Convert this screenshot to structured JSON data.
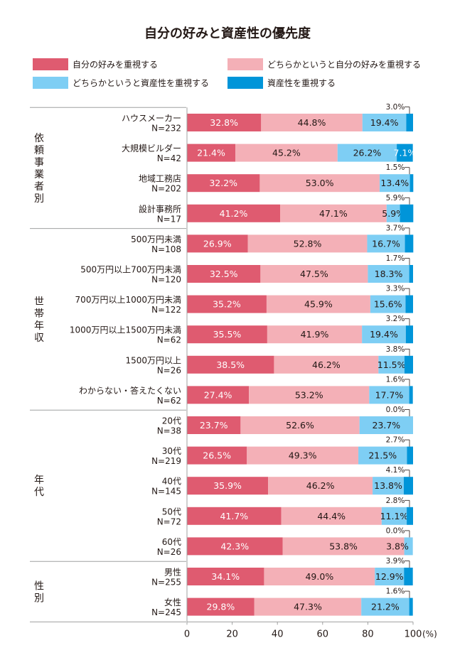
{
  "chart_data": {
    "type": "bar",
    "orientation": "horizontal",
    "stacked": true,
    "title": "自分の好みと資産性の優先度",
    "xlabel": "",
    "ylabel": "",
    "xlim": [
      0,
      100
    ],
    "x_ticks": [
      "0",
      "20",
      "40",
      "60",
      "80",
      "100"
    ],
    "x_unit": "(%)",
    "legend_position": "top",
    "series": [
      {
        "name": "自分の好みを重視する",
        "color": "#df5b70"
      },
      {
        "name": "どちらかというと自分の好みを重視する",
        "color": "#f4b0b7"
      },
      {
        "name": "どちらかというと資産性を重視する",
        "color": "#7ecef4"
      },
      {
        "name": "資産性を重視する",
        "color": "#0095d9"
      }
    ],
    "groups": [
      {
        "label": "依頼事業者別",
        "rows": [
          {
            "label": "ハウスメーカー",
            "n": "N=232",
            "values": [
              32.8,
              44.8,
              19.4,
              3.0
            ],
            "labels": [
              "32.8%",
              "44.8%",
              "19.4%",
              "3.0%"
            ]
          },
          {
            "label": "大規模ビルダー",
            "n": "N=42",
            "values": [
              21.4,
              45.2,
              26.2,
              7.1
            ],
            "labels": [
              "21.4%",
              "45.2%",
              "26.2%",
              "7.1%"
            ]
          },
          {
            "label": "地域工務店",
            "n": "N=202",
            "values": [
              32.2,
              53.0,
              13.4,
              1.5
            ],
            "labels": [
              "32.2%",
              "53.0%",
              "13.4%",
              "1.5%"
            ]
          },
          {
            "label": "設計事務所",
            "n": "N=17",
            "values": [
              41.2,
              47.1,
              5.9,
              5.9
            ],
            "labels": [
              "41.2%",
              "47.1%",
              "5.9%",
              "5.9%"
            ]
          }
        ]
      },
      {
        "label": "世帯年収",
        "rows": [
          {
            "label": "500万円未満",
            "n": "N=108",
            "values": [
              26.9,
              52.8,
              16.7,
              3.7
            ],
            "labels": [
              "26.9%",
              "52.8%",
              "16.7%",
              "3.7%"
            ]
          },
          {
            "label": "500万円以上700万円未満",
            "n": "N=120",
            "values": [
              32.5,
              47.5,
              18.3,
              1.7
            ],
            "labels": [
              "32.5%",
              "47.5%",
              "18.3%",
              "1.7%"
            ]
          },
          {
            "label": "700万円以上1000万円未満",
            "n": "N=122",
            "values": [
              35.2,
              45.9,
              15.6,
              3.3
            ],
            "labels": [
              "35.2%",
              "45.9%",
              "15.6%",
              "3.3%"
            ]
          },
          {
            "label": "1000万円以上1500万円未満",
            "n": "N=62",
            "values": [
              35.5,
              41.9,
              19.4,
              3.2
            ],
            "labels": [
              "35.5%",
              "41.9%",
              "19.4%",
              "3.2%"
            ]
          },
          {
            "label": "1500万円以上",
            "n": "N=26",
            "values": [
              38.5,
              46.2,
              11.5,
              3.8
            ],
            "labels": [
              "38.5%",
              "46.2%",
              "11.5%",
              "3.8%"
            ]
          },
          {
            "label": "わからない・答えたくない",
            "n": "N=62",
            "values": [
              27.4,
              53.2,
              17.7,
              1.6
            ],
            "labels": [
              "27.4%",
              "53.2%",
              "17.7%",
              "1.6%"
            ]
          }
        ]
      },
      {
        "label": "年代",
        "rows": [
          {
            "label": "20代",
            "n": "N=38",
            "values": [
              23.7,
              52.6,
              23.7,
              0.0
            ],
            "labels": [
              "23.7%",
              "52.6%",
              "23.7%",
              "0.0%"
            ]
          },
          {
            "label": "30代",
            "n": "N=219",
            "values": [
              26.5,
              49.3,
              21.5,
              2.7
            ],
            "labels": [
              "26.5%",
              "49.3%",
              "21.5%",
              "2.7%"
            ]
          },
          {
            "label": "40代",
            "n": "N=145",
            "values": [
              35.9,
              46.2,
              13.8,
              4.1
            ],
            "labels": [
              "35.9%",
              "46.2%",
              "13.8%",
              "4.1%"
            ]
          },
          {
            "label": "50代",
            "n": "N=72",
            "values": [
              41.7,
              44.4,
              11.1,
              2.8
            ],
            "labels": [
              "41.7%",
              "44.4%",
              "11.1%",
              "2.8%"
            ]
          },
          {
            "label": "60代",
            "n": "N=26",
            "values": [
              42.3,
              53.8,
              3.8,
              0.0
            ],
            "labels": [
              "42.3%",
              "53.8%",
              "3.8%",
              "0.0%"
            ]
          }
        ]
      },
      {
        "label": "性別",
        "rows": [
          {
            "label": "男性",
            "n": "N=255",
            "values": [
              34.1,
              49.0,
              12.9,
              3.9
            ],
            "labels": [
              "34.1%",
              "49.0%",
              "12.9%",
              "3.9%"
            ]
          },
          {
            "label": "女性",
            "n": "N=245",
            "values": [
              29.8,
              47.3,
              21.2,
              1.6
            ],
            "labels": [
              "29.8%",
              "47.3%",
              "21.2%",
              "1.6%"
            ]
          }
        ]
      }
    ]
  }
}
